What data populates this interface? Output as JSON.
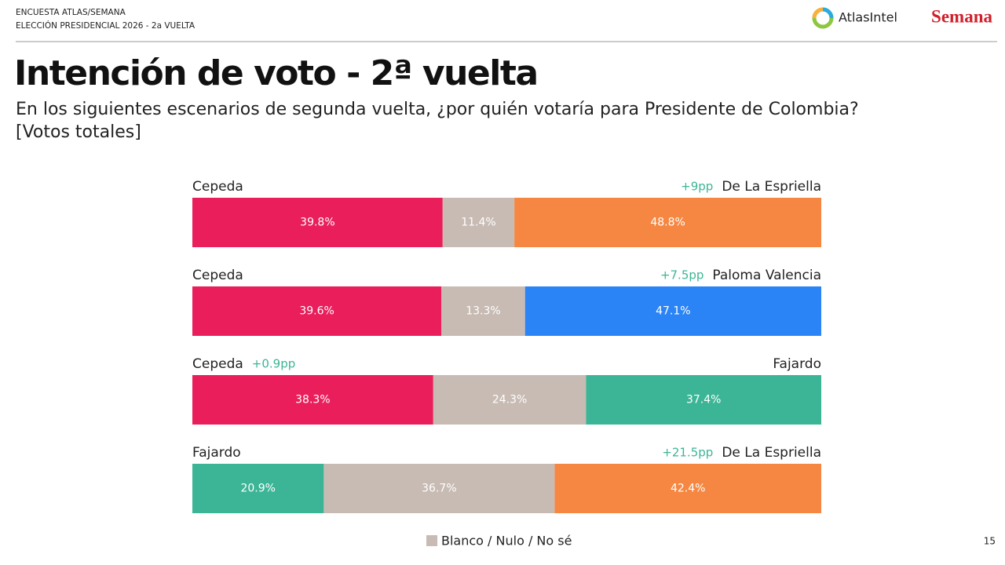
{
  "chart_data": {
    "type": "bar",
    "orientation": "horizontal",
    "stacked": true,
    "header": [
      "ENCUESTA ATLAS/SEMANA",
      "ELECCIÓN PRESIDENCIAL 2026 - 2a VUELTA"
    ],
    "brands": [
      "AtlasIntel",
      "Semana"
    ],
    "title": "Intención de voto - 2ª vuelta",
    "subtitle": [
      "En los siguientes escenarios de segunda vuelta, ¿por quién votaría para Presidente de Colombia?",
      "[Votos totales]"
    ],
    "scenarios": [
      {
        "left": "Cepeda",
        "right": "De La Espriella",
        "lead": "+9pp",
        "lead_side": "right",
        "values": [
          39.8,
          11.4,
          48.8
        ],
        "value_labels": [
          "39.8%",
          "11.4%",
          "48.8%"
        ],
        "colors": [
          "#e91e5a",
          "#c8bbb3",
          "#f58742"
        ]
      },
      {
        "left": "Cepeda",
        "right": "Paloma Valencia",
        "lead": "+7.5pp",
        "lead_side": "right",
        "values": [
          39.6,
          13.3,
          47.1
        ],
        "value_labels": [
          "39.6%",
          "13.3%",
          "47.1%"
        ],
        "colors": [
          "#e91e5a",
          "#c8bbb3",
          "#2a84f6"
        ]
      },
      {
        "left": "Cepeda",
        "right": "Fajardo",
        "lead": "+0.9pp",
        "lead_side": "left",
        "values": [
          38.3,
          24.3,
          37.4
        ],
        "value_labels": [
          "38.3%",
          "24.3%",
          "37.4%"
        ],
        "colors": [
          "#e91e5a",
          "#c8bbb3",
          "#3bb596"
        ]
      },
      {
        "left": "Fajardo",
        "right": "De La Espriella",
        "lead": "+21.5pp",
        "lead_side": "right",
        "values": [
          20.9,
          36.7,
          42.4
        ],
        "value_labels": [
          "20.9%",
          "36.7%",
          "42.4%"
        ],
        "colors": [
          "#3bb596",
          "#c8bbb3",
          "#f58742"
        ]
      }
    ],
    "lead_color": "#3bb596",
    "legend": {
      "name": "Blanco / Nulo / No sé",
      "color": "#c8bbb3"
    },
    "page_number": "15"
  }
}
